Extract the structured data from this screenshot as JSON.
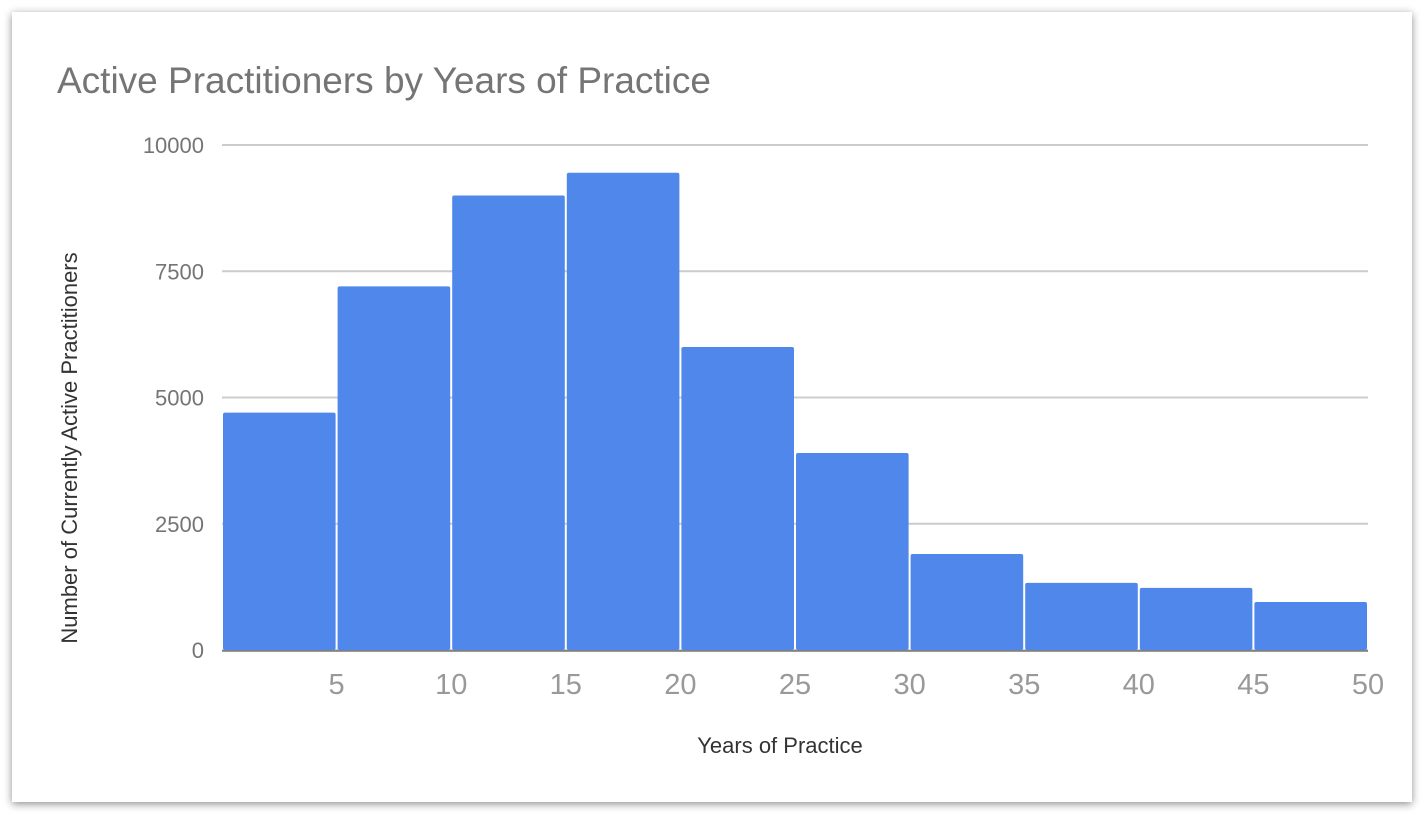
{
  "chart_data": {
    "type": "bar",
    "title": "Active Practitioners by Years of Practice",
    "xlabel": "Years of Practice",
    "ylabel": "Number of Currently Active Practitioners",
    "bins": [
      [
        0,
        5
      ],
      [
        5,
        10
      ],
      [
        10,
        15
      ],
      [
        15,
        20
      ],
      [
        20,
        25
      ],
      [
        25,
        30
      ],
      [
        30,
        35
      ],
      [
        35,
        40
      ],
      [
        40,
        45
      ],
      [
        45,
        50
      ]
    ],
    "values": [
      4700,
      7200,
      9000,
      9450,
      6000,
      3900,
      1900,
      1330,
      1230,
      950
    ],
    "x_ticks": [
      "5",
      "10",
      "15",
      "20",
      "25",
      "30",
      "35",
      "40",
      "45",
      "50"
    ],
    "y_ticks": [
      "0",
      "2500",
      "5000",
      "7500",
      "10000"
    ],
    "xlim": [
      0,
      50
    ],
    "ylim": [
      0,
      10000
    ],
    "grid": true,
    "legend": "none",
    "colors": {
      "bar": "#4f87ea",
      "grid": "#cccccc",
      "text": "#757575"
    }
  }
}
